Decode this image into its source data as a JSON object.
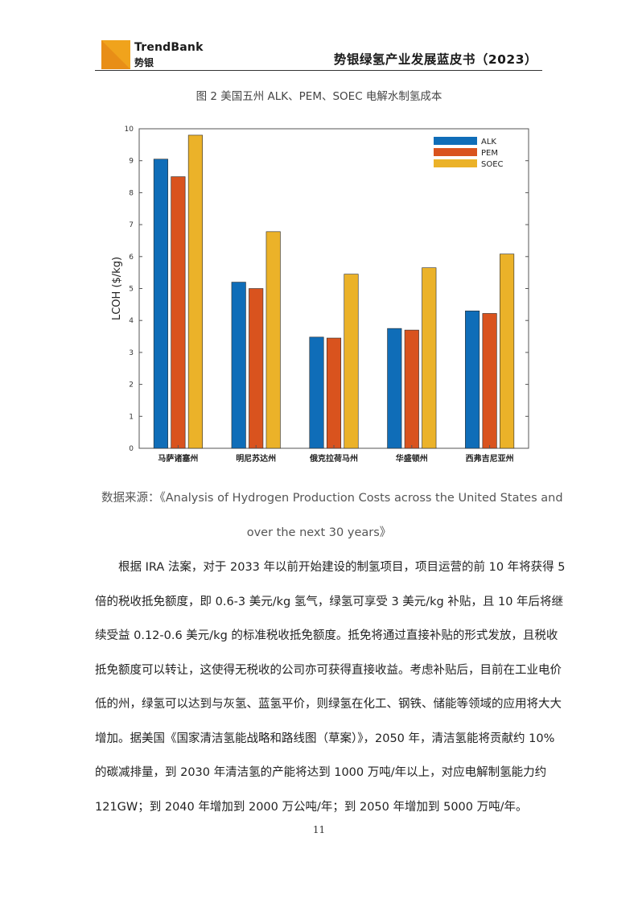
{
  "header": {
    "brand_en": "TrendBank",
    "brand_cn": "势银",
    "title": "势银绿氢产业发展蓝皮书（2023）"
  },
  "figure": {
    "caption": "图 2  美国五州 ALK、PEM、SOEC 电解水制氢成本",
    "source_line1": "数据来源：《Analysis of Hydrogen Production Costs across the United States and",
    "source_line2": "over the next 30 years》"
  },
  "chart_data": {
    "type": "bar",
    "title": "",
    "xlabel": "",
    "ylabel": "LCOH ($/kg)",
    "ylim": [
      0,
      10
    ],
    "yticks": [
      0,
      1,
      2,
      3,
      4,
      5,
      6,
      7,
      8,
      9,
      10
    ],
    "categories": [
      "马萨诸塞州",
      "明尼苏达州",
      "俄克拉荷马州",
      "华盛顿州",
      "西弗吉尼亚州"
    ],
    "series": [
      {
        "name": "ALK",
        "color": "#0f6db8",
        "values": [
          9.05,
          5.2,
          3.48,
          3.75,
          4.3
        ]
      },
      {
        "name": "PEM",
        "color": "#d9531e",
        "values": [
          8.5,
          5.0,
          3.45,
          3.7,
          4.22
        ]
      },
      {
        "name": "SOEC",
        "color": "#ebb229",
        "values": [
          9.8,
          6.78,
          5.45,
          5.65,
          6.08
        ]
      }
    ],
    "legend_position": "top-right",
    "grid": false
  },
  "body": {
    "paragraph_lines": [
      "根据 IRA 法案，对于 2033 年以前开始建设的制氢项目，项目运营的前 10 年将获得 5",
      "倍的税收抵免额度，即 0.6-3 美元/kg 氢气，绿氢可享受 3 美元/kg 补贴，且 10 年后将继",
      "续受益 0.12-0.6 美元/kg 的标准税收抵免额度。抵免将通过直接补贴的形式发放，且税收",
      "抵免额度可以转让，这使得无税收的公司亦可获得直接收益。考虑补贴后，目前在工业电价",
      "低的州，绿氢可以达到与灰氢、蓝氢平价，则绿氢在化工、钢铁、储能等领域的应用将大大",
      "增加。据美国《国家清洁氢能战略和路线图（草案）》，2050 年，清洁氢能将贡献约 10%",
      "的碳减排量，到 2030 年清洁氢的产能将达到 1000 万吨/年以上，对应电解制氢能力约",
      "121GW；到 2040 年增加到 2000 万公吨/年；到 2050 年增加到 5000 万吨/年。"
    ]
  },
  "footer": {
    "page_number": "11"
  }
}
